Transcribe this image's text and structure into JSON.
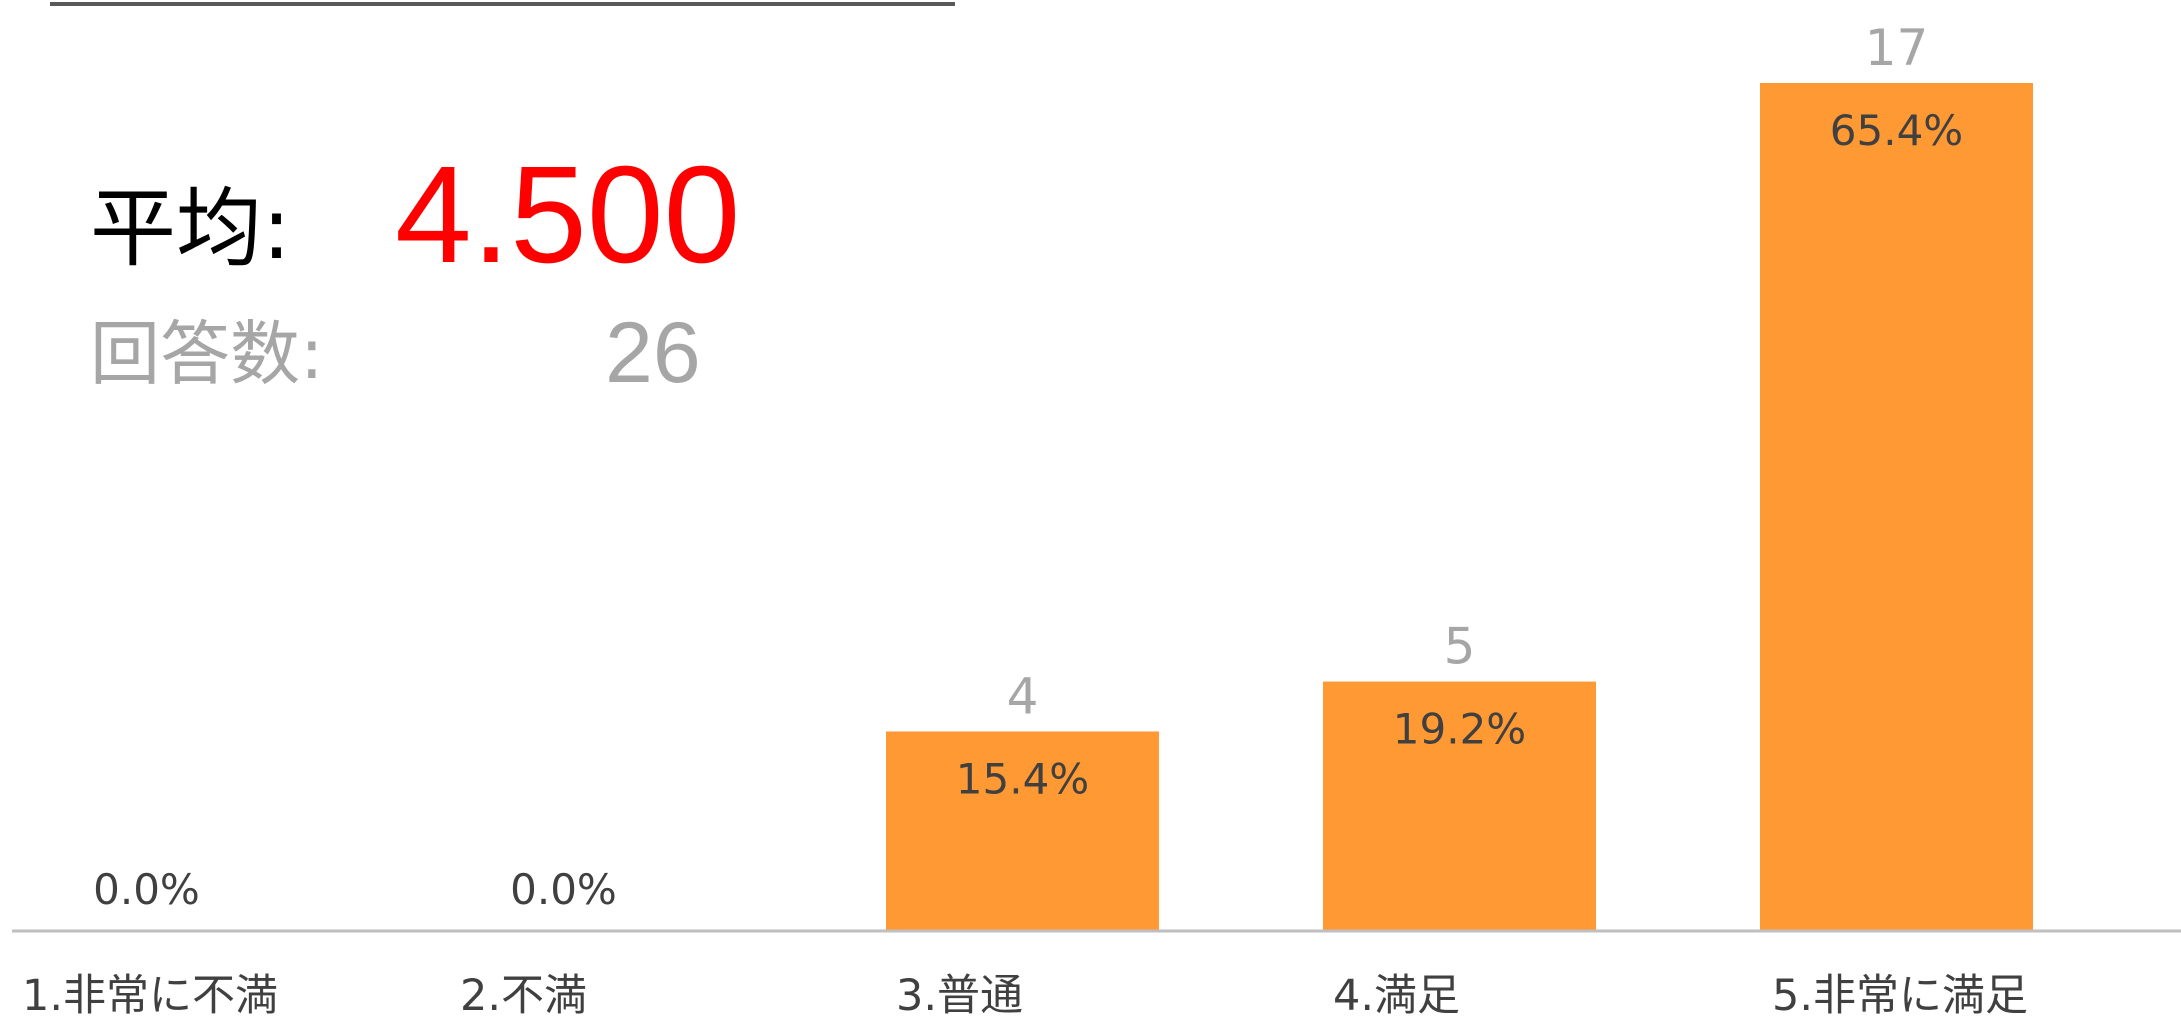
{
  "summary": {
    "average_label": "平均:",
    "average_value": "4.500",
    "count_label": "回答数:",
    "count_value": "26"
  },
  "colors": {
    "bar": "#FF9933",
    "average_value": "#FF0000",
    "axis": "#BFBFBF",
    "count_text": "#A6A6A6",
    "percent_text": "#404040",
    "category_text": "#404040"
  },
  "chart_data": {
    "type": "bar",
    "categories": [
      "1.非常に不満",
      "2.不満",
      "3.普通",
      "4.満足",
      "5.非常に満足"
    ],
    "values": [
      0,
      0,
      4,
      5,
      17
    ],
    "count_labels": [
      "",
      "",
      "4",
      "5",
      "17"
    ],
    "percent_labels": [
      "0.0%",
      "0.0%",
      "15.4%",
      "19.2%",
      "65.4%"
    ],
    "ylim": [
      0,
      17
    ],
    "grid": false,
    "legend": "none"
  }
}
